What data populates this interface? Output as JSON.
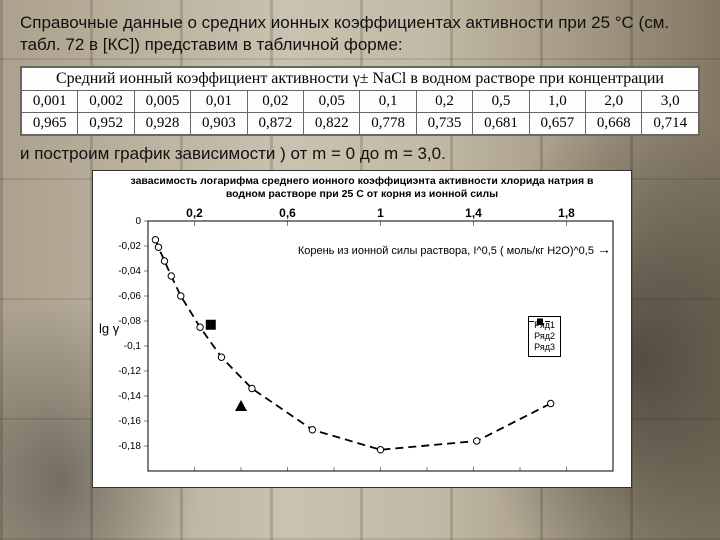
{
  "intro_text": "Справочные данные о средних ионных коэффициентах активности при 25 °С (см. табл. 72 в [КС]) представим в табличной форме:",
  "table": {
    "header": "Средний ионный коэффициент активности γ± NaCl в водном растворе при концентрации",
    "conc": [
      "0,001",
      "0,002",
      "0,005",
      "0,01",
      "0,02",
      "0,05",
      "0,1",
      "0,2",
      "0,5",
      "1,0",
      "2,0",
      "3,0"
    ],
    "gamma": [
      "0,965",
      "0,952",
      "0,928",
      "0,903",
      "0,872",
      "0,822",
      "0,778",
      "0,735",
      "0,681",
      "0,657",
      "0,668",
      "0,714"
    ]
  },
  "mid_text": "и построим график зависимости ) от m = 0 до m = 3,0.",
  "chart": {
    "title_l1": "завасимость логарифма среднего ионного коэффициэнта активности хлорида натрия в",
    "title_l2": "водном растворе при 25 С от корня из ионной силы",
    "x_axis_caption": "Корень из ионной силы раствора, I^0,5 ( моль/кг H2O)^0,5",
    "y_title": "lg γ",
    "x_major": [
      0.2,
      0.6,
      1.0,
      1.4,
      1.8
    ],
    "y_ticks": [
      0,
      -0.02,
      -0.04,
      -0.06,
      -0.08,
      -0.1,
      -0.12,
      -0.14,
      -0.16,
      -0.18
    ],
    "xlim": [
      0,
      2.0
    ],
    "ylim": [
      -0.2,
      0.0
    ],
    "curve": [
      [
        0.032,
        -0.015
      ],
      [
        0.045,
        -0.021
      ],
      [
        0.071,
        -0.032
      ],
      [
        0.1,
        -0.044
      ],
      [
        0.141,
        -0.06
      ],
      [
        0.224,
        -0.085
      ],
      [
        0.316,
        -0.109
      ],
      [
        0.447,
        -0.134
      ],
      [
        0.707,
        -0.167
      ],
      [
        1.0,
        -0.183
      ],
      [
        1.414,
        -0.176
      ],
      [
        1.732,
        -0.146
      ]
    ],
    "square_pt": [
      0.27,
      -0.083
    ],
    "triangle_pt": [
      0.4,
      -0.148
    ],
    "legend": [
      "Ряд1",
      "Ряд2",
      "Ряд3"
    ],
    "colors": {
      "bg": "#ffffff",
      "axis": "#000000",
      "curve": "#000000"
    }
  }
}
